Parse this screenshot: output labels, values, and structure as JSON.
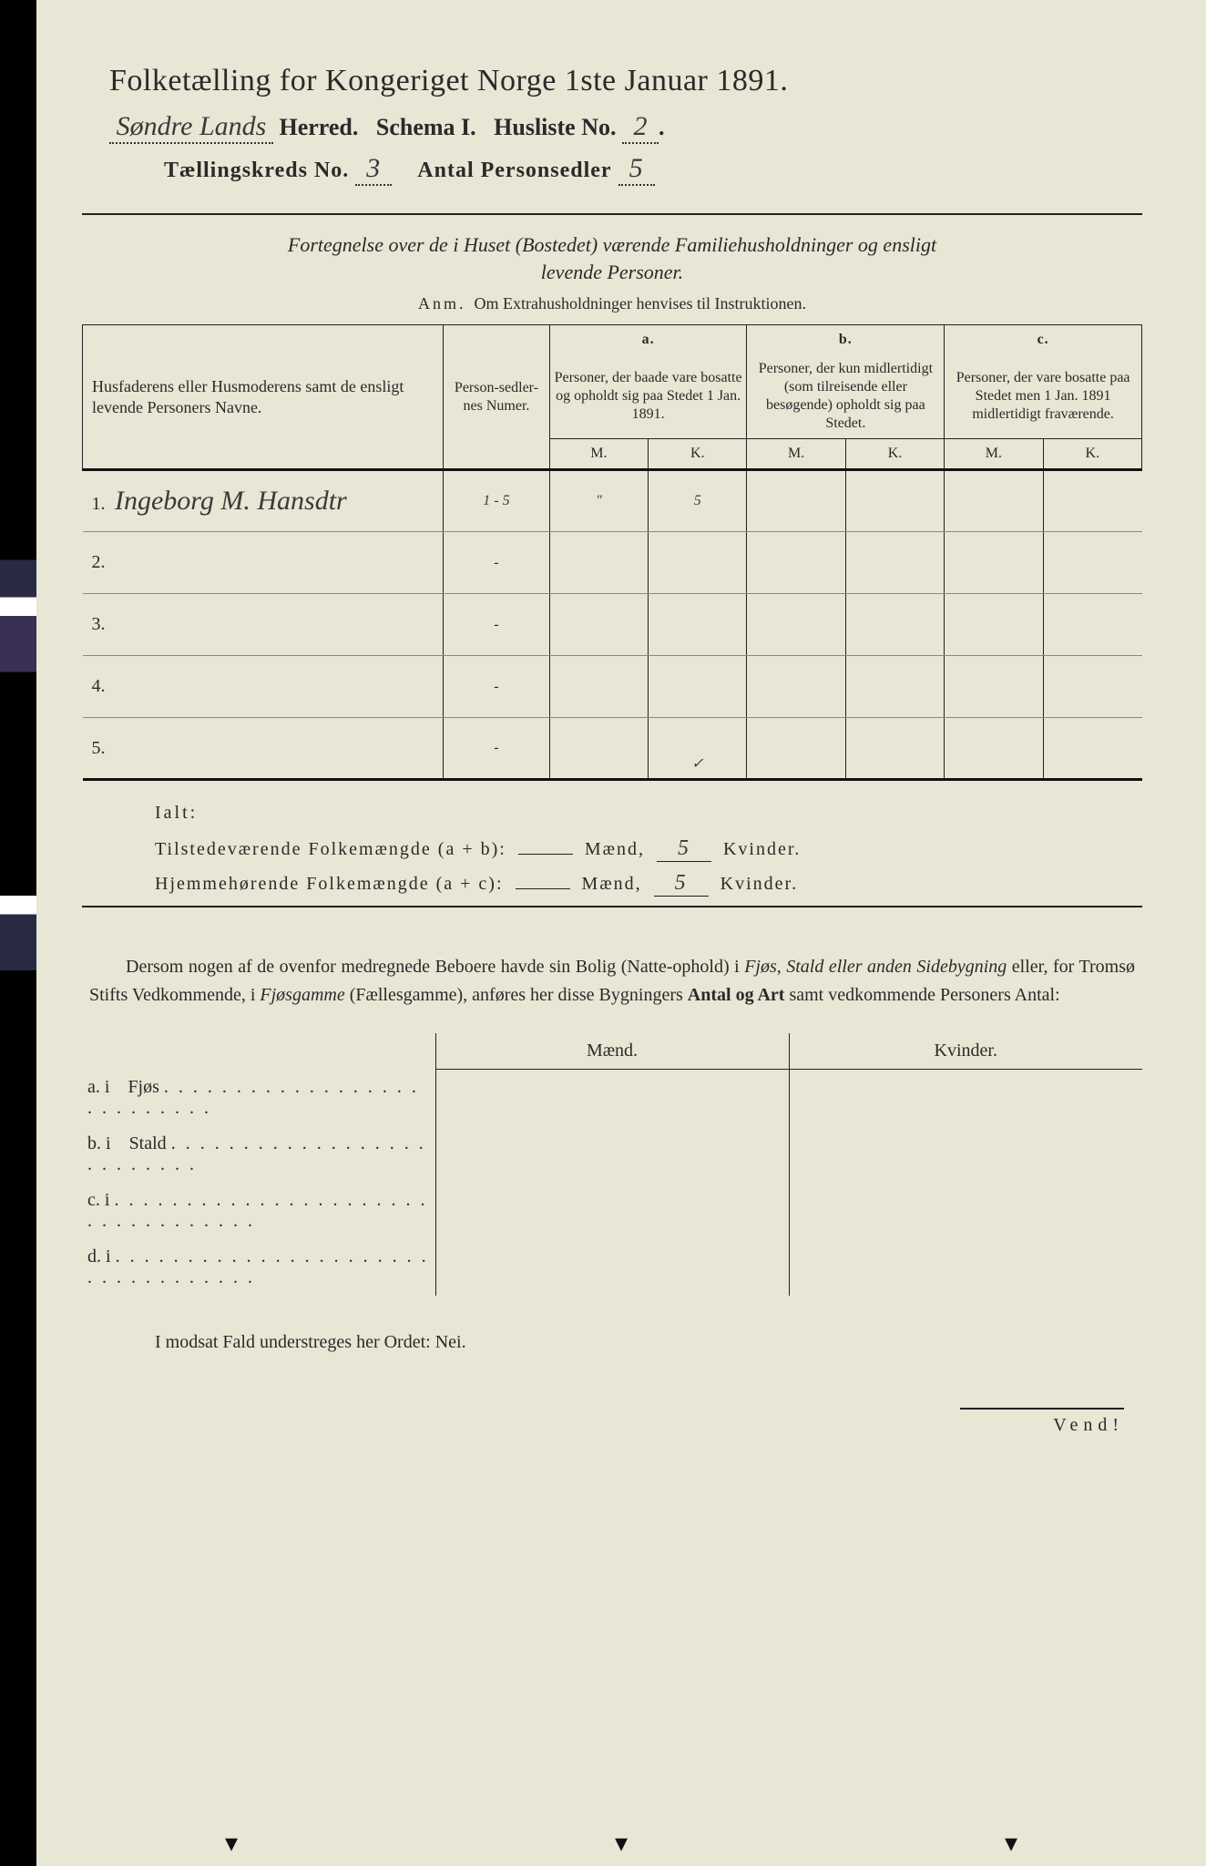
{
  "header": {
    "title": "Folketælling for Kongeriget Norge 1ste Januar 1891.",
    "herred_value": "Søndre Lands",
    "herred_label": "Herred.",
    "schema_label": "Schema I.",
    "husliste_label": "Husliste No.",
    "husliste_value": "2",
    "kreds_label": "Tællingskreds No.",
    "kreds_value": "3",
    "antal_label": "Antal Personsedler",
    "antal_value": "5"
  },
  "intro": {
    "line1": "Fortegnelse over de i Huset (Bostedet) værende Familiehusholdninger og ensligt",
    "line2": "levende Personer.",
    "anm_label": "Anm.",
    "anm_text": "Om Extrahusholdninger henvises til Instruktionen."
  },
  "table": {
    "col_name": "Husfaderens eller Husmoderens samt de ensligt levende Personers Navne.",
    "col_num": "Person-sedler-nes Numer.",
    "col_a_top": "a.",
    "col_a": "Personer, der baade vare bosatte og opholdt sig paa Stedet 1 Jan. 1891.",
    "col_b_top": "b.",
    "col_b": "Personer, der kun midlertidigt (som tilreisende eller besøgende) opholdt sig paa Stedet.",
    "col_c_top": "c.",
    "col_c": "Personer, der vare bosatte paa Stedet men 1 Jan. 1891 midlertidigt fraværende.",
    "mk_m": "M.",
    "mk_k": "K.",
    "rows": [
      {
        "idx": "1.",
        "name": "Ingeborg M. Hansdtr",
        "num": "1 - 5",
        "a_m": "\"",
        "a_k": "5",
        "b_m": "",
        "b_k": "",
        "c_m": "",
        "c_k": ""
      },
      {
        "idx": "2.",
        "name": "",
        "num": "-",
        "a_m": "",
        "a_k": "",
        "b_m": "",
        "b_k": "",
        "c_m": "",
        "c_k": ""
      },
      {
        "idx": "3.",
        "name": "",
        "num": "-",
        "a_m": "",
        "a_k": "",
        "b_m": "",
        "b_k": "",
        "c_m": "",
        "c_k": ""
      },
      {
        "idx": "4.",
        "name": "",
        "num": "-",
        "a_m": "",
        "a_k": "",
        "b_m": "",
        "b_k": "",
        "c_m": "",
        "c_k": ""
      },
      {
        "idx": "5.",
        "name": "",
        "num": "-",
        "a_m": "",
        "a_k": "✓",
        "b_m": "",
        "b_k": "",
        "c_m": "",
        "c_k": ""
      }
    ]
  },
  "totals": {
    "ialt": "Ialt:",
    "row1_label": "Tilstedeværende Folkemængde (a + b):",
    "row2_label": "Hjemmehørende Folkemængde (a + c):",
    "maend": "Mænd,",
    "kvinder": "Kvinder.",
    "row1_m": "",
    "row1_k": "5",
    "row2_m": "",
    "row2_k": "5"
  },
  "para": {
    "text1": "Dersom nogen af de ovenfor medregnede Beboere havde sin Bolig (Natte-ophold) i ",
    "em1": "Fjøs, Stald eller anden Sidebygning",
    "text2": " eller, for Tromsø Stifts Vedkommende, i ",
    "em2": "Fjøsgamme",
    "text3": " (Fællesgamme), anføres her disse Bygningers ",
    "b1": "Antal og Art",
    "text4": " samt vedkommende Personers Antal:"
  },
  "buildings": {
    "hdr_m": "Mænd.",
    "hdr_k": "Kvinder.",
    "rows": [
      {
        "label": "a.  i",
        "name": "Fjøs"
      },
      {
        "label": "b.  i",
        "name": "Stald"
      },
      {
        "label": "c.  i",
        "name": ""
      },
      {
        "label": "d.  i",
        "name": ""
      }
    ]
  },
  "nei": "I modsat Fald understreges her Ordet: Nei.",
  "vend": "Vend!",
  "style": {
    "page_bg": "#e8e6d4",
    "text_color": "#2a2a2a",
    "title_fontsize": 34,
    "body_fontsize": 20,
    "table_fontsize": 16,
    "hand_color": "#3a3a3a"
  }
}
